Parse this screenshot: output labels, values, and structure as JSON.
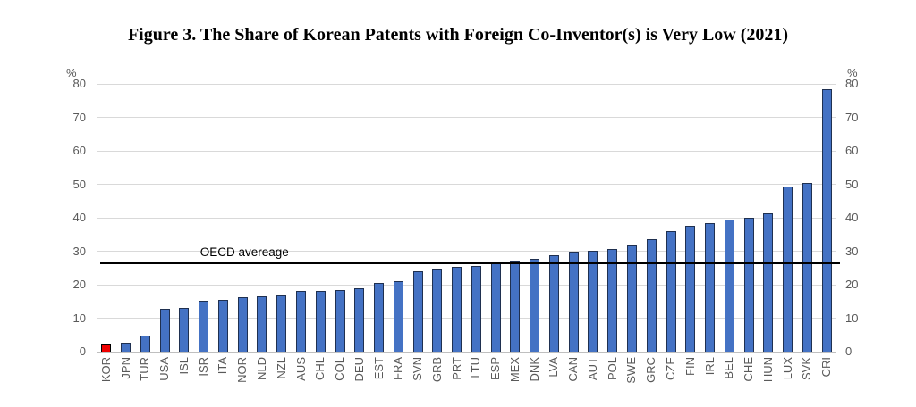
{
  "chart_data": {
    "type": "bar",
    "title": "Figure 3. The Share of Korean Patents with Foreign Co-Inventor(s) is Very Low (2021)",
    "xlabel": "",
    "ylabel": "%",
    "ylim": [
      0,
      80
    ],
    "ytick_step": 10,
    "grid": true,
    "legend": "none",
    "categories": [
      "KOR",
      "JPN",
      "TUR",
      "USA",
      "ISL",
      "ISR",
      "ITA",
      "NOR",
      "NLD",
      "NZL",
      "AUS",
      "CHL",
      "COL",
      "DEU",
      "EST",
      "FRA",
      "SVN",
      "GRB",
      "PRT",
      "LTU",
      "ESP",
      "MEX",
      "DNK",
      "LVA",
      "CAN",
      "AUT",
      "POL",
      "SWE",
      "GRC",
      "CZE",
      "FIN",
      "IRL",
      "BEL",
      "CHE",
      "HUN",
      "LUX",
      "SVK",
      "CRI"
    ],
    "values": [
      2.3,
      2.7,
      4.8,
      12.7,
      13.1,
      15.2,
      15.5,
      16.2,
      16.6,
      16.9,
      18.2,
      18.2,
      18.4,
      18.9,
      20.6,
      21.0,
      23.9,
      24.7,
      25.4,
      25.6,
      26.9,
      27.2,
      27.8,
      28.7,
      29.8,
      30.2,
      30.7,
      31.8,
      33.6,
      36.0,
      37.6,
      38.3,
      39.6,
      39.9,
      41.3,
      49.3,
      50.5,
      78.4
    ],
    "highlight_category": "KOR",
    "colors": {
      "bar_fill": "#4472c4",
      "bar_border": "#1f3050",
      "highlight_fill": "#ee0000",
      "highlight_border": "#000000",
      "gridline": "#d9d9d9",
      "axis_text": "#595959",
      "reference_line": "#000000"
    },
    "reference_line": {
      "label": "OECD avereage",
      "value": 26.5
    }
  }
}
